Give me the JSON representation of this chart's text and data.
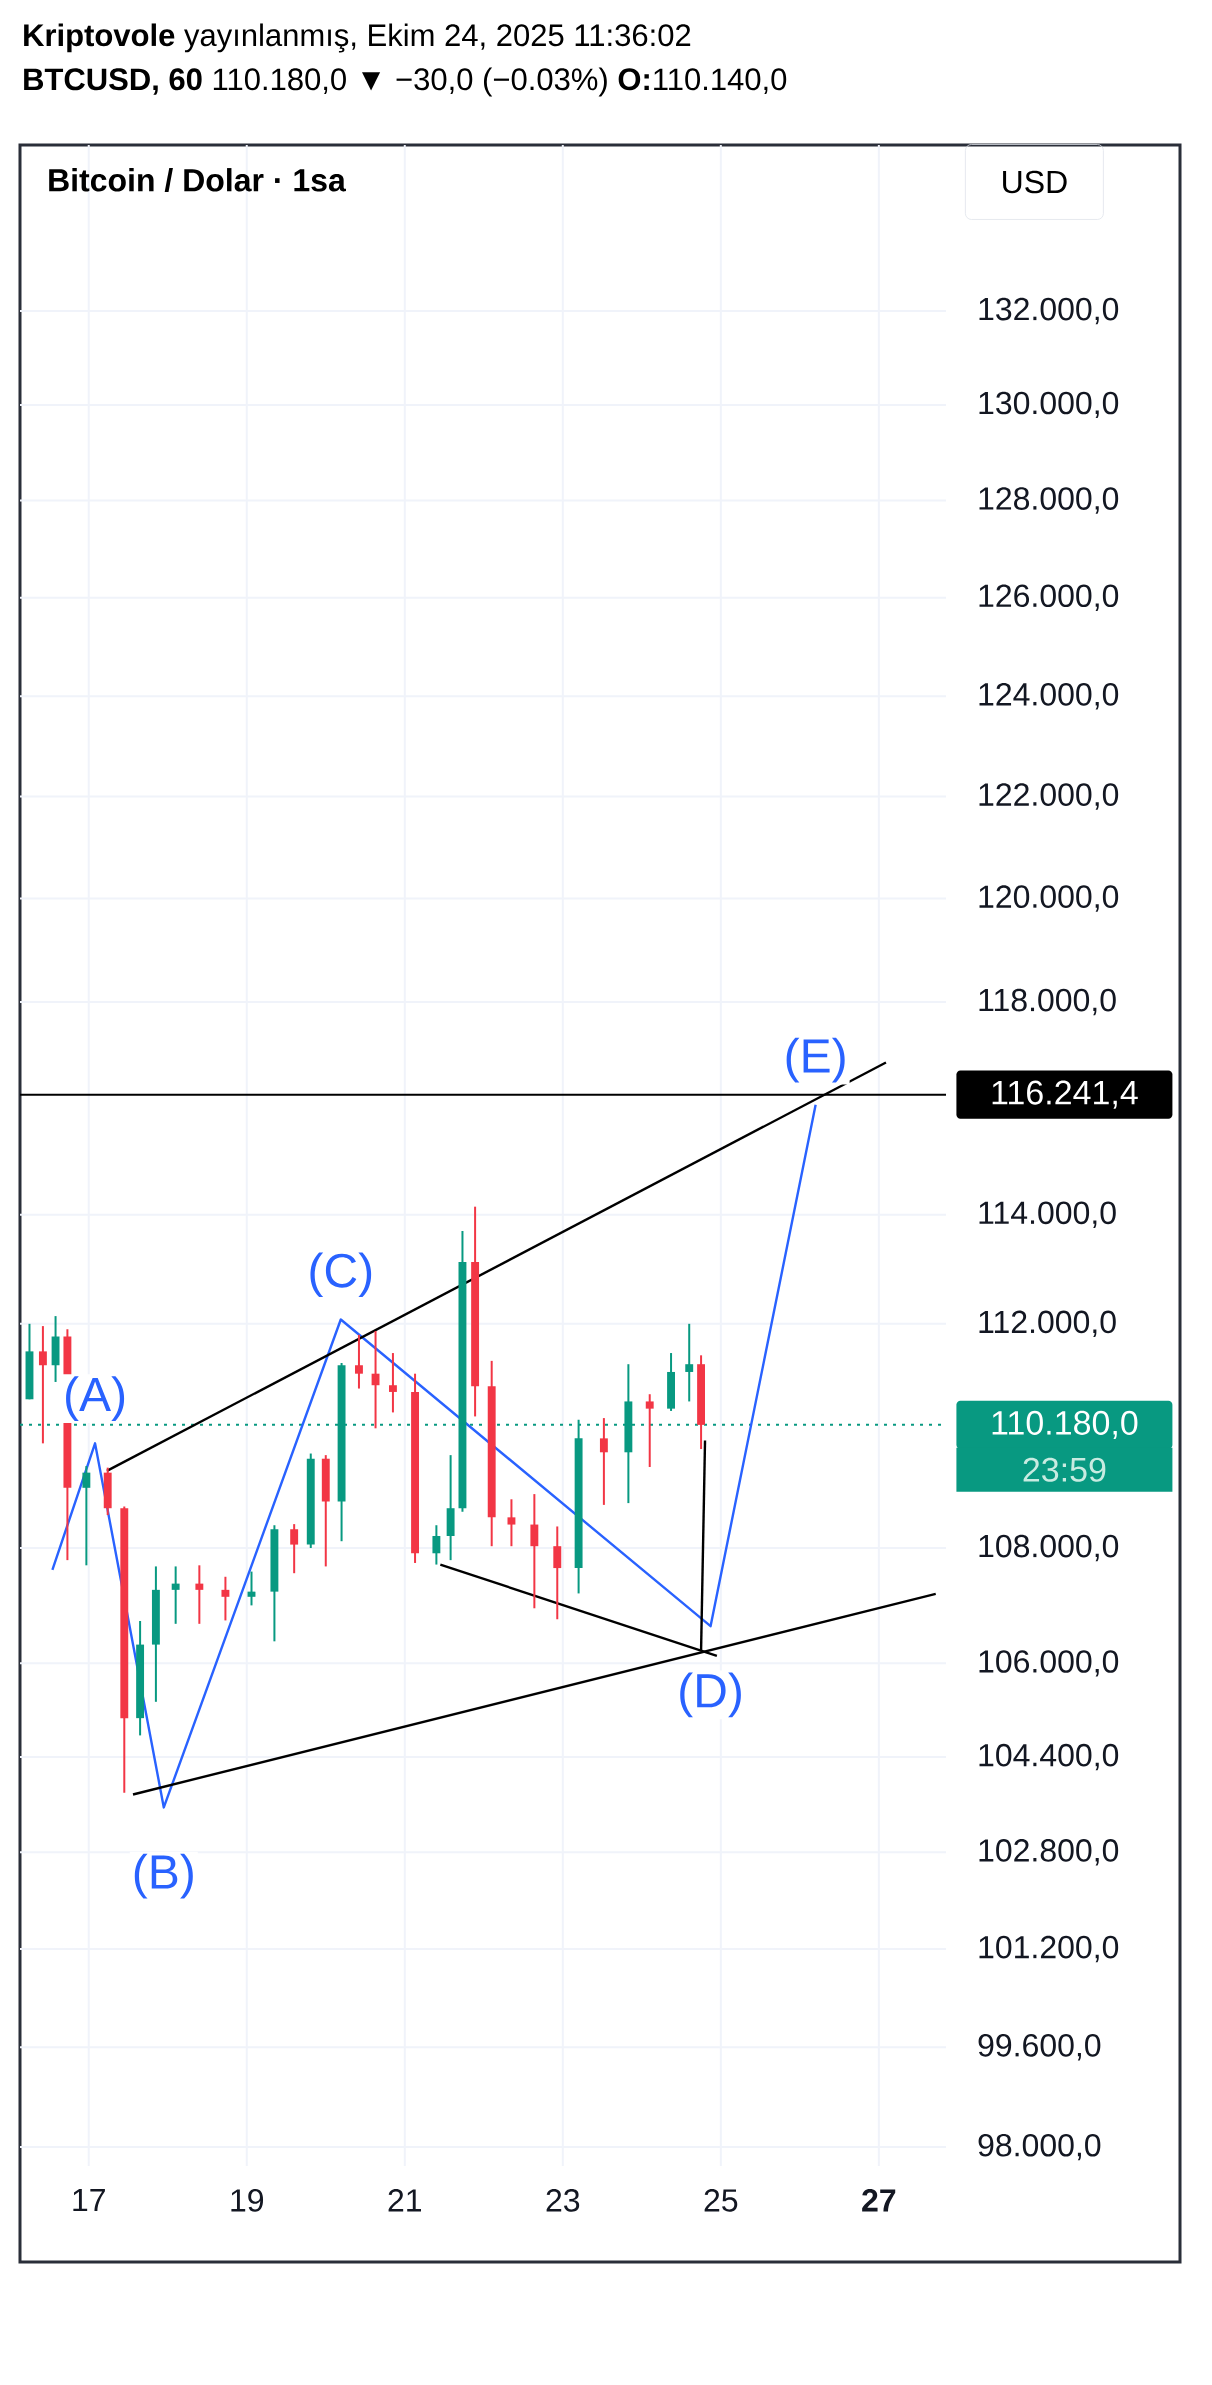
{
  "chart_data": {
    "type": "candlestick",
    "title": "Bitcoin / Dolar · 1sa",
    "subtitle": "**Kriptovole** yayınlanmış, Ekim 24, 2025 11:36:02",
    "x": [
      16.25,
      16.42,
      16.58,
      16.73,
      16.97,
      17.24,
      17.45,
      17.65,
      17.85,
      18.1,
      18.4,
      18.73,
      19.06,
      19.35,
      19.6,
      19.81,
      20.0,
      20.2,
      20.42,
      20.63,
      20.85,
      21.13,
      21.4,
      21.58,
      21.73,
      21.89,
      22.1,
      22.35,
      22.64,
      22.93,
      23.2,
      23.52,
      23.83,
      24.1,
      24.37,
      24.6,
      24.75
    ],
    "ohlc": [
      [
        110640,
        112000,
        110640,
        111500
      ],
      [
        111500,
        111960,
        109850,
        111250
      ],
      [
        111250,
        112140,
        110950,
        111770
      ],
      [
        111770,
        111900,
        107790,
        109060
      ],
      [
        109060,
        109450,
        107700,
        109330
      ],
      [
        109330,
        109420,
        108580,
        108700
      ],
      [
        108700,
        108730,
        103800,
        105060
      ],
      [
        105060,
        106730,
        104770,
        106320
      ],
      [
        106320,
        107680,
        105340,
        107270
      ],
      [
        107270,
        107680,
        106680,
        107380
      ],
      [
        107380,
        107700,
        106680,
        107270
      ],
      [
        107270,
        107500,
        106740,
        107150
      ],
      [
        107150,
        107590,
        107000,
        107240
      ],
      [
        107240,
        108400,
        106380,
        108330
      ],
      [
        108330,
        108420,
        107560,
        108060
      ],
      [
        108060,
        109670,
        108000,
        109580
      ],
      [
        109580,
        109640,
        107680,
        108820
      ],
      [
        108820,
        111290,
        108120,
        111250
      ],
      [
        111250,
        111800,
        110830,
        111100
      ],
      [
        111100,
        111870,
        110120,
        110890
      ],
      [
        110890,
        111470,
        110400,
        110770
      ],
      [
        110770,
        111100,
        107740,
        107910
      ],
      [
        107910,
        108400,
        107710,
        108210
      ],
      [
        108210,
        109640,
        107790,
        108700
      ],
      [
        108700,
        113700,
        108640,
        113130
      ],
      [
        113130,
        114150,
        110330,
        110870
      ],
      [
        110870,
        111330,
        108030,
        108540
      ],
      [
        108540,
        108860,
        108030,
        108410
      ],
      [
        108410,
        108950,
        106950,
        108030
      ],
      [
        108030,
        108380,
        106760,
        107650
      ],
      [
        107650,
        110270,
        107210,
        109940
      ],
      [
        109940,
        110300,
        108760,
        109690
      ],
      [
        109690,
        111270,
        108790,
        110600
      ],
      [
        110600,
        110730,
        109430,
        110470
      ],
      [
        110470,
        111470,
        110430,
        111130
      ],
      [
        111130,
        112000,
        110600,
        111270
      ],
      [
        111270,
        111430,
        109750,
        110180
      ]
    ],
    "colors": [
      "#089981",
      "#F23645",
      "#089981",
      "#F23645",
      "#089981",
      "#F23645",
      "#F23645",
      "#089981",
      "#089981",
      "#089981",
      "#F23645",
      "#F23645",
      "#089981",
      "#089981",
      "#F23645",
      "#089981",
      "#F23645",
      "#089981",
      "#F23645",
      "#F23645",
      "#F23645",
      "#F23645",
      "#089981",
      "#089981",
      "#089981",
      "#F23645",
      "#F23645",
      "#F23645",
      "#F23645",
      "#F23645",
      "#089981",
      "#F23645",
      "#089981",
      "#F23645",
      "#089981",
      "#089981",
      "#F23645"
    ],
    "series": [
      {
        "type": "line",
        "color": "#2962FF",
        "x": [
          16.54,
          17.08,
          17.95,
          20.19,
          24.87,
          26.2
        ],
        "values": [
          107620,
          109850,
          103550,
          112080,
          106640,
          116050
        ]
      },
      {
        "type": "line",
        "color": "#000000",
        "x": [
          17.23,
          27.09
        ],
        "values": [
          109360,
          116850
        ]
      },
      {
        "type": "line",
        "color": "#000000",
        "x": [
          17.56,
          27.72
        ],
        "values": [
          103770,
          107200
        ]
      },
      {
        "type": "line",
        "color": "#000000",
        "x": [
          21.45,
          24.95
        ],
        "values": [
          107710,
          106130
        ]
      },
      {
        "type": "line",
        "color": "#000000",
        "x": [
          24.8,
          24.75
        ],
        "values": [
          109900,
          106220
        ]
      }
    ],
    "xlim": [
      16.13,
      27.85
    ],
    "ylim": [
      97700,
      135600
    ],
    "log": true,
    "grid": true,
    "xticks": [
      17,
      19,
      21,
      23,
      25,
      {
        "value": 27,
        "label": "**27**"
      }
    ],
    "yticks": [
      {
        "value": 132000,
        "label": "132.000,0"
      },
      {
        "value": 130000,
        "label": "130.000,0"
      },
      {
        "value": 128000,
        "label": "128.000,0"
      },
      {
        "value": 126000,
        "label": "126.000,0"
      },
      {
        "value": 124000,
        "label": "124.000,0"
      },
      {
        "value": 122000,
        "label": "122.000,0"
      },
      {
        "value": 120000,
        "label": "120.000,0"
      },
      {
        "value": 118000,
        "label": "118.000,0"
      },
      {
        "value": 114000,
        "label": "114.000,0"
      },
      {
        "value": 112000,
        "label": "112.000,0"
      },
      {
        "value": 108000,
        "label": "108.000,0"
      },
      {
        "value": 106000,
        "label": "106.000,0"
      },
      {
        "value": 104400,
        "label": "104.400,0"
      },
      {
        "value": 102800,
        "label": "102.800,0"
      },
      {
        "value": 101200,
        "label": "101.200,0"
      },
      {
        "value": 99600,
        "label": "99.600,0"
      },
      {
        "value": 98000,
        "label": "98.000,0"
      }
    ],
    "ref_lines": [
      {
        "axis": "y",
        "value": 116241.4,
        "label": "116.241,4",
        "color": "#000000",
        "line_style": "solid"
      },
      {
        "axis": "y",
        "value": 110180,
        "label": "110.180,0",
        "color": "#089981",
        "line_style": "dotted"
      }
    ],
    "annotations": [
      "**BTCUSD, 60** 110.180,0 ▼ −30,0 (−0.03%) **O:**110.140,0",
      "USD",
      "23:59",
      {
        "text": "(A)",
        "x": 17.08,
        "y": 109850
      },
      {
        "text": "(B)",
        "x": 17.95,
        "y": 103550
      },
      {
        "text": "(C)",
        "x": 20.19,
        "y": 112080
      },
      {
        "text": "(D)",
        "x": 24.87,
        "y": 106640
      },
      {
        "text": "(E)",
        "x": 26.2,
        "y": 116050
      }
    ]
  }
}
